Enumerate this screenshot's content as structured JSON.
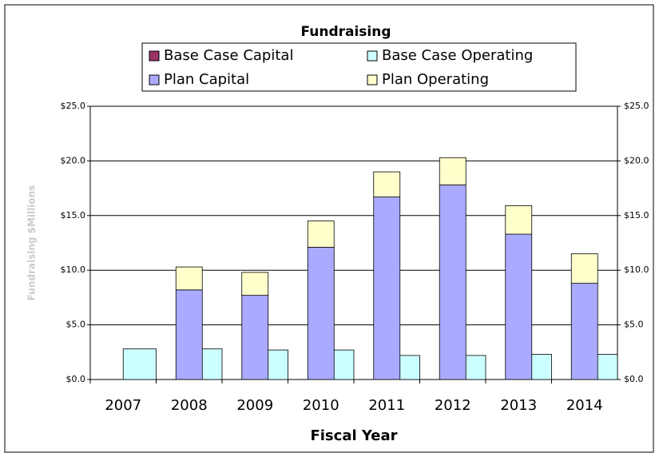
{
  "chart_data": {
    "type": "stacked_grouped_bar",
    "title": "Fundraising",
    "categories": [
      "2007",
      "2008",
      "2009",
      "2010",
      "2011",
      "2012",
      "2013",
      "2014"
    ],
    "series": [
      {
        "name": "Base Case Capital",
        "color": "#993366",
        "stack": "base",
        "values": [
          0,
          0,
          0,
          0,
          0,
          0,
          0,
          0
        ]
      },
      {
        "name": "Base Case Operating",
        "color": "#ccffff",
        "stack": "base",
        "values": [
          2.8,
          2.8,
          2.7,
          2.7,
          2.2,
          2.2,
          2.3,
          2.3
        ]
      },
      {
        "name": "Plan Capital",
        "color": "#aaaaff",
        "stack": "plan",
        "values": [
          0,
          8.2,
          7.7,
          12.1,
          16.7,
          17.8,
          13.3,
          8.8
        ]
      },
      {
        "name": "Plan Operating",
        "color": "#ffffcc",
        "stack": "plan",
        "values": [
          0,
          2.1,
          2.1,
          2.4,
          2.3,
          2.5,
          2.6,
          2.7
        ]
      }
    ],
    "x_label": "Fiscal Year",
    "y_label": "Fundraising $Millions",
    "ylim": [
      0,
      25
    ],
    "yticks": [
      {
        "value": 0,
        "label": "$0.0"
      },
      {
        "value": 5,
        "label": "$5.0"
      },
      {
        "value": 10,
        "label": "$10.0"
      },
      {
        "value": 15,
        "label": "$15.0"
      },
      {
        "value": 20,
        "label": "$20.0"
      },
      {
        "value": 25,
        "label": "$25.0"
      }
    ],
    "y2lim": [
      0,
      25
    ],
    "y2ticks": [
      {
        "value": 0,
        "label": "$0.0"
      },
      {
        "value": 5,
        "label": "$5.0"
      },
      {
        "value": 10,
        "label": "$10.0"
      },
      {
        "value": 15,
        "label": "$15.0"
      },
      {
        "value": 20,
        "label": "$20.0"
      },
      {
        "value": 25,
        "label": "$25.0"
      }
    ],
    "grid": true
  }
}
